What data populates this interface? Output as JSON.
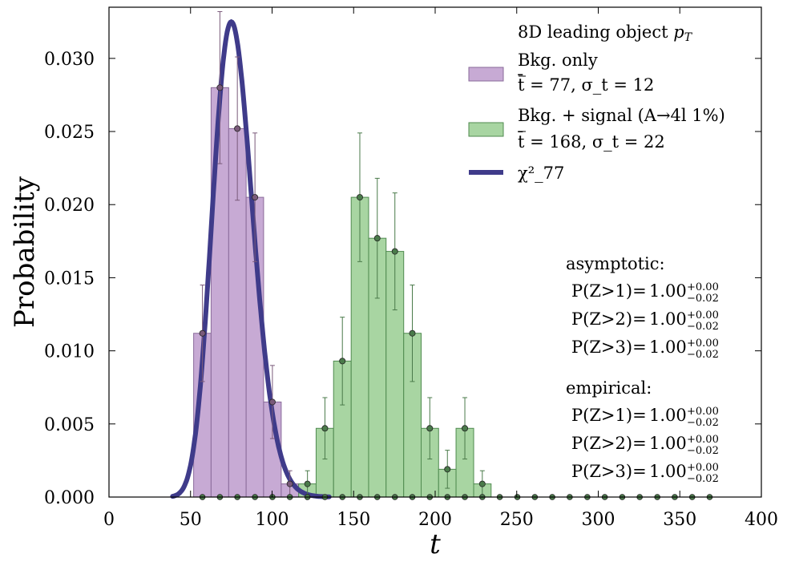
{
  "chart_data": {
    "type": "bar",
    "xlabel": "t",
    "ylabel": "Probability",
    "xlim": [
      0,
      400
    ],
    "ylim": [
      0,
      0.0335
    ],
    "xticks": [
      0,
      50,
      100,
      150,
      200,
      250,
      300,
      350,
      400
    ],
    "xtick_labels": [
      "0",
      "50",
      "100",
      "150",
      "200",
      "250",
      "300",
      "350",
      "400"
    ],
    "yticks": [
      0.0,
      0.005,
      0.01,
      0.015,
      0.02,
      0.025,
      0.03
    ],
    "ytick_labels": [
      "0.000",
      "0.005",
      "0.010",
      "0.015",
      "0.020",
      "0.025",
      "0.030"
    ],
    "legend_title": "8D leading object p_T",
    "legend_placement": "top-right",
    "colors": {
      "background_hist": "#c7aad4",
      "background_edge": "#8a6b9a",
      "background_points": "#7a5a7a",
      "signal_hist": "#a8d5a2",
      "signal_edge": "#4f8a4f",
      "signal_points": "#4a7a4a",
      "chi2_line": "#3f3b8a"
    },
    "bin_edges": [
      51.9,
      62.6,
      73.4,
      84.1,
      94.8,
      105.6,
      116.3,
      127.0,
      137.7,
      148.5,
      159.2,
      169.9,
      180.7,
      191.4,
      202.1,
      212.8,
      223.6,
      234.3
    ],
    "series": [
      {
        "name": "Bkg. only",
        "label_line2": "t̄ = 77, σ_t = 12",
        "x_centers": [
          57.3,
          68.0,
          78.7,
          89.5,
          100.2,
          110.9
        ],
        "values": [
          0.0112,
          0.028,
          0.0252,
          0.0205,
          0.0065,
          0.0009
        ],
        "errors": [
          0.0033,
          0.0052,
          0.0049,
          0.0044,
          0.0025,
          0.0009
        ]
      },
      {
        "name": "Bkg. + signal (A→4l 1%)",
        "label_line2": "t̄ = 168, σ_t = 22",
        "x_centers": [
          121.7,
          132.4,
          143.1,
          153.8,
          164.5,
          175.3,
          186.0,
          196.7,
          207.5,
          218.2,
          228.9
        ],
        "values": [
          0.0009,
          0.0047,
          0.0093,
          0.0205,
          0.0177,
          0.0168,
          0.0112,
          0.0047,
          0.0019,
          0.0047,
          0.0009
        ],
        "errors": [
          0.0009,
          0.0021,
          0.003,
          0.0044,
          0.0041,
          0.004,
          0.0033,
          0.0021,
          0.0013,
          0.0021,
          0.0009
        ]
      },
      {
        "name": "χ²_77",
        "type": "line",
        "dof": 77
      }
    ],
    "zero_points_x": [
      57.3,
      68.0,
      78.7,
      89.5,
      100.2,
      110.9,
      121.7,
      132.4,
      143.1,
      153.8,
      164.5,
      175.3,
      186.0,
      196.7,
      207.5,
      218.2,
      228.9,
      239.6,
      250.4,
      261.1,
      271.8,
      282.5,
      293.3,
      304.0,
      314.7,
      325.4,
      336.2,
      346.9,
      357.6,
      368.3
    ],
    "annotations": {
      "asymptotic_title": "asymptotic:",
      "empirical_title": "empirical:",
      "rows": [
        "P(Z>1)=",
        "P(Z>2)=",
        "P(Z>3)="
      ],
      "value": "1.00",
      "upper": "+0.00",
      "lower": "−0.02"
    }
  }
}
